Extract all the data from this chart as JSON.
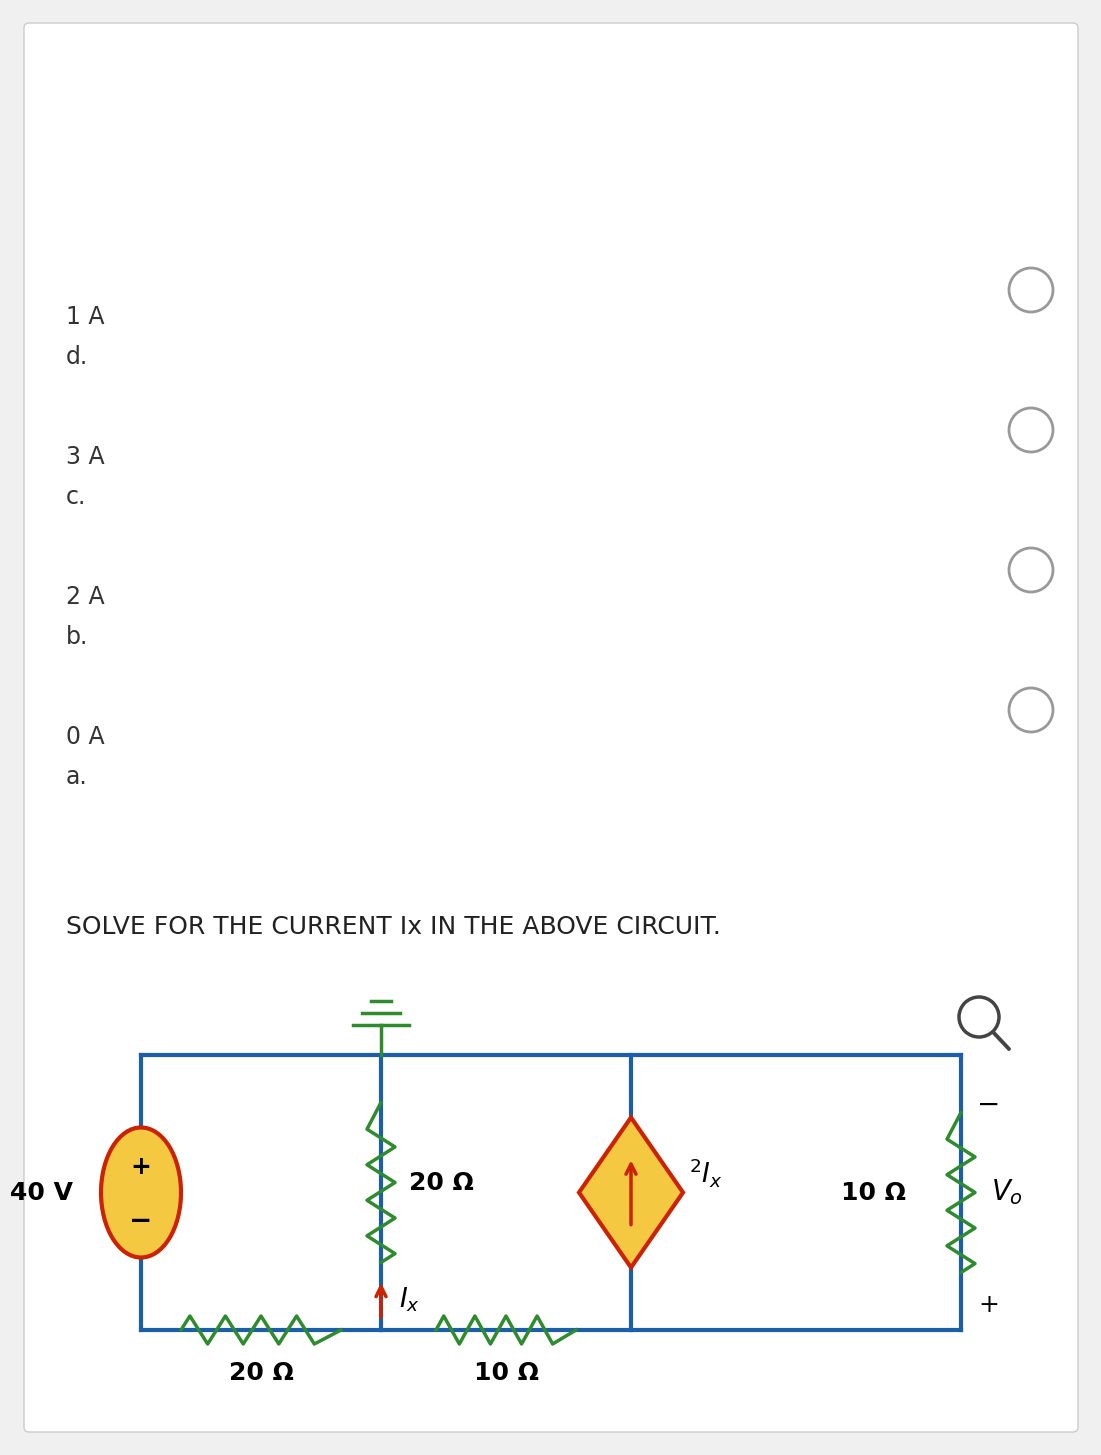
{
  "wire_color": "#1a5fa8",
  "resistor_color": "#2e8b2e",
  "source_fill": "#f5c842",
  "source_border": "#cc2200",
  "arrow_color": "#cc2200",
  "diamond_fill": "#f5c842",
  "diamond_border": "#cc2200",
  "question_text": "SOLVE FOR THE CURRENT Ix IN THE ABOVE CIRCUIT.",
  "option_labels": [
    "a.",
    "b.",
    "c.",
    "d."
  ],
  "option_values": [
    "0 A",
    "2 A",
    "3 A",
    "1 A"
  ],
  "res_20_top_label": "20 Ω",
  "res_10_top_label": "10 Ω",
  "res_20_mid_label": "20 Ω",
  "res_10_right_label": "10 Ω",
  "v_source_label": "40 V",
  "gnd_color": "#2e8b2e"
}
